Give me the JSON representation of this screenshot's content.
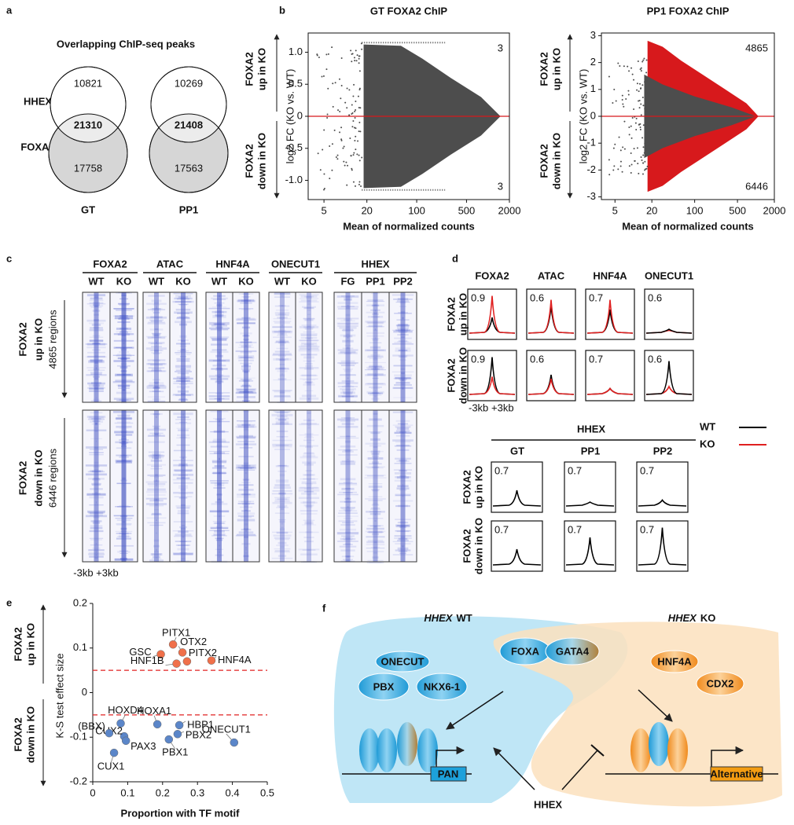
{
  "panel_labels": [
    "a",
    "b",
    "c",
    "d",
    "e",
    "f"
  ],
  "venn": {
    "title": "Overlapping ChIP-seq peaks",
    "set_labels": [
      "HHEX",
      "FOXA2"
    ],
    "diagrams": [
      {
        "name": "GT",
        "only_hhex": 10821,
        "overlap": 21310,
        "only_foxa2": 17758
      },
      {
        "name": "PP1",
        "only_hhex": 10269,
        "overlap": 21408,
        "only_foxa2": 17563
      }
    ]
  },
  "chart_data": [
    {
      "type": "ma",
      "title": "GT FOXA2 ChIP",
      "xlabel": "Mean of normalized counts",
      "ylabel": "log2 FC (KO vs. WT)",
      "up_label": [
        "FOXA2",
        "up in KO"
      ],
      "down_label": [
        "FOXA2",
        "down in KO"
      ],
      "n_up": 3,
      "n_down": 3,
      "xscale": "log",
      "xlim": [
        3,
        2000
      ],
      "xticks": [
        5,
        20,
        100,
        500,
        2000
      ],
      "ylim": [
        -1.3,
        1.3
      ],
      "yticks": [
        {
          "value": -1,
          "label": "-1.0"
        },
        -0.5,
        0,
        0.5,
        {
          "value": 1,
          "label": "1.0"
        }
      ],
      "point_color": "#4d4d4d",
      "highlight_color": "#d7191c"
    },
    {
      "type": "ma",
      "title": "PP1 FOXA2 ChIP",
      "xlabel": "Mean of normalized counts",
      "ylabel": "log2 FC (KO vs. WT)",
      "up_label": [
        "FOXA2",
        "up in KO"
      ],
      "down_label": [
        "FOXA2",
        "down in KO"
      ],
      "n_up": 4865,
      "n_down": 6446,
      "xscale": "log",
      "xlim": [
        3,
        2000
      ],
      "xticks": [
        5,
        20,
        100,
        500,
        2000
      ],
      "ylim": [
        -3.1,
        3.1
      ],
      "yticks": [
        -3,
        -2,
        -1,
        0,
        1,
        2,
        3
      ],
      "point_color": "#4d4d4d",
      "highlight_color": "#d7191c"
    },
    {
      "type": "scatter",
      "xlabel": "Proportion with TF motif",
      "ylabel": "K-S test effect size",
      "up_label": [
        "FOXA2",
        "up in KO"
      ],
      "down_label": [
        "FOXA2",
        "down in KO"
      ],
      "xlim": [
        0,
        0.5
      ],
      "xticks": [
        0,
        0.1,
        0.2,
        0.3,
        0.4,
        0.5
      ],
      "ylim": [
        -0.2,
        0.2
      ],
      "yticks": [
        -0.2,
        -0.1,
        0,
        0.1,
        0.2
      ],
      "thresholds": [
        0.05,
        -0.05
      ],
      "threshold_color": "#e02020",
      "series": [
        {
          "color": "#f0704a",
          "labels": [
            "GSC",
            "PITX1",
            "OTX2",
            "HNF1B",
            "PITX2",
            "HNF4A"
          ],
          "x": [
            0.195,
            0.23,
            0.257,
            0.24,
            0.27,
            0.34
          ],
          "values": [
            0.086,
            0.108,
            0.09,
            0.065,
            0.07,
            0.072
          ]
        },
        {
          "color": "#5b86c9",
          "labels": [
            "HOXD4",
            "HOXA1",
            "HBP1",
            "PBX2",
            "PBX1",
            "ONECUT1",
            "CUX2",
            "(BBX)",
            "PAX3",
            "CUX1"
          ],
          "x": [
            0.08,
            0.185,
            0.248,
            0.243,
            0.218,
            0.405,
            0.09,
            0.047,
            0.095,
            0.061
          ],
          "values": [
            -0.069,
            -0.071,
            -0.073,
            -0.093,
            -0.105,
            -0.112,
            -0.098,
            -0.091,
            -0.108,
            -0.135
          ]
        }
      ]
    }
  ],
  "heatmaps": {
    "marks": [
      {
        "name": "FOXA2",
        "samples": [
          "WT",
          "KO"
        ]
      },
      {
        "name": "ATAC",
        "samples": [
          "WT",
          "KO"
        ]
      },
      {
        "name": "HNF4A",
        "samples": [
          "WT",
          "KO"
        ]
      },
      {
        "name": "ONECUT1",
        "samples": [
          "WT",
          "KO"
        ]
      },
      {
        "name": "HHEX",
        "samples": [
          "FG",
          "PP1",
          "PP2"
        ]
      }
    ],
    "groups": [
      {
        "label": [
          "FOXA2",
          "up in KO"
        ],
        "regions": "4865 regions"
      },
      {
        "label": [
          "FOXA2",
          "down in KO"
        ],
        "regions": "6446 regions"
      }
    ],
    "window": "-3kb +3kb"
  },
  "profiles": {
    "marks": [
      "FOXA2",
      "ATAC",
      "HNF4A",
      "ONECUT1"
    ],
    "rows": [
      [
        "FOXA2",
        "up in KO"
      ],
      [
        "FOXA2",
        "down in KO"
      ]
    ],
    "ymax": [
      [
        0.9,
        0.6,
        0.7,
        0.6
      ],
      [
        0.9,
        0.6,
        0.7,
        0.6
      ]
    ],
    "window": [
      "-3kb",
      "+3kb"
    ],
    "hhex": {
      "title": "HHEX",
      "stages": [
        "GT",
        "PP1",
        "PP2"
      ],
      "ymax": [
        [
          0.7,
          0.7,
          0.7
        ],
        [
          0.7,
          0.7,
          0.7
        ]
      ]
    },
    "legend": [
      {
        "name": "WT",
        "color": "#000000"
      },
      {
        "name": "KO",
        "color": "#e02020"
      }
    ]
  },
  "model": {
    "wt_title": {
      "gene": "HHEX",
      "state": "WT"
    },
    "ko_title": {
      "gene": "HHEX",
      "state": "KO"
    },
    "wt_factors": [
      "ONECUT",
      "PBX",
      "NKX6-1"
    ],
    "shared_factors": [
      "FOXA",
      "GATA4"
    ],
    "ko_factors": [
      "HNF4A",
      "CDX2"
    ],
    "wt_target": "PAN",
    "ko_target": "Alternative",
    "regulator": "HHEX"
  }
}
